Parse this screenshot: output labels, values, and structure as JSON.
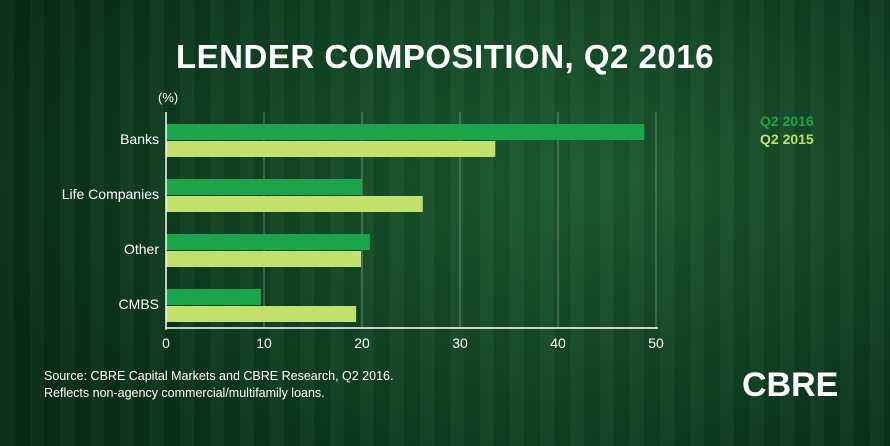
{
  "title": "LENDER COMPOSITION, Q2 2016",
  "unit_label": "(%)",
  "source_line1": "Source: CBRE Capital Markets and CBRE Research, Q2 2016.",
  "source_line2": "Reflects non-agency commercial/multifamily loans.",
  "logo_text": "CBRE",
  "colors": {
    "q2_2016": "#1aa54a",
    "q2_2015": "#c3e06a",
    "background": "#0f4a25"
  },
  "chart_data": {
    "type": "bar",
    "orientation": "horizontal",
    "categories": [
      "Banks",
      "Life Companies",
      "Other",
      "CMBS"
    ],
    "series": [
      {
        "name": "Q2 2016",
        "values": [
          48.8,
          20.0,
          20.8,
          9.7
        ]
      },
      {
        "name": "Q2 2015",
        "values": [
          33.6,
          26.2,
          19.9,
          19.4
        ]
      }
    ],
    "xlim": [
      0,
      50
    ],
    "xticks": [
      0,
      10,
      20,
      30,
      40,
      50
    ],
    "grid": true,
    "legend": "top-right"
  }
}
